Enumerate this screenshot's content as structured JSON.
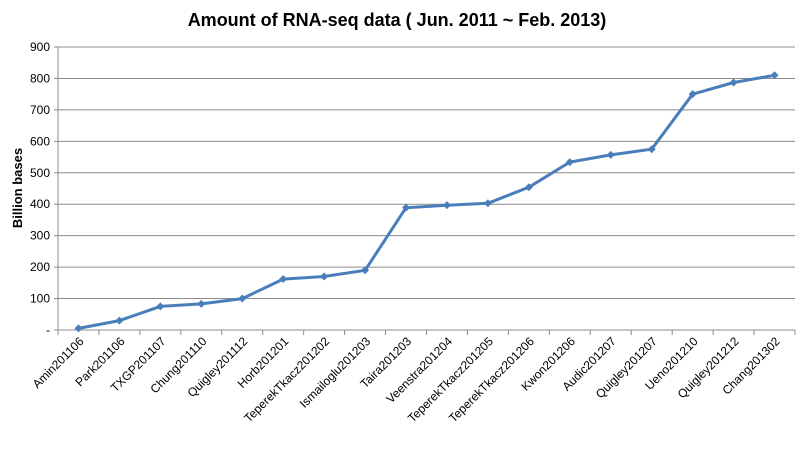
{
  "chart_data": {
    "type": "line",
    "title": "Amount of RNA-seq data ( Jun. 2011 ~ Feb. 2013)",
    "xlabel": "",
    "ylabel": "Billion bases",
    "ylim": [
      0,
      900
    ],
    "yticks": [
      "-",
      "100",
      "200",
      "300",
      "400",
      "500",
      "600",
      "700",
      "800",
      "900"
    ],
    "grid": true,
    "legend": "none",
    "categories": [
      "Amin201106",
      "Park201106",
      "TXGP201107",
      "Chung201110",
      "Quigley201112",
      "Horb201201",
      "TeperekTkacz201202",
      "Ismailoglu201203",
      "Taira201203",
      "Veenstra201204",
      "TeperekTkacz201205",
      "TeperekTkacz201206",
      "Kwon201206",
      "Audic201207",
      "Quigley201207",
      "Ueno201210",
      "Quigley201212",
      "Chang201302"
    ],
    "values": [
      5,
      30,
      75,
      83,
      100,
      162,
      170,
      190,
      389,
      397,
      403,
      454,
      534,
      557,
      575,
      750,
      787,
      810
    ],
    "color": "#4a7ebb"
  }
}
